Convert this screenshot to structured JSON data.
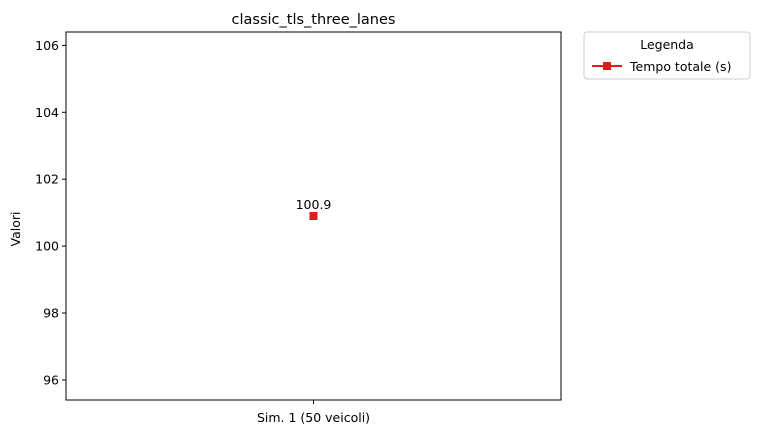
{
  "chart_data": {
    "type": "line",
    "title": "classic_tls_three_lanes",
    "xlabel": "",
    "ylabel": "Valori",
    "categories": [
      "Sim. 1 (50 veicoli)"
    ],
    "ylim": [
      95.4,
      106.4
    ],
    "yticks": [
      96,
      98,
      100,
      102,
      104,
      106
    ],
    "grid": false,
    "legend": {
      "title": "Legenda",
      "placement": "outside-top-right"
    },
    "series": [
      {
        "name": "Tempo totale (s)",
        "color": "#e41a1c",
        "marker": "square",
        "values": [
          100.9
        ],
        "data_labels": [
          "100.9"
        ]
      }
    ]
  }
}
